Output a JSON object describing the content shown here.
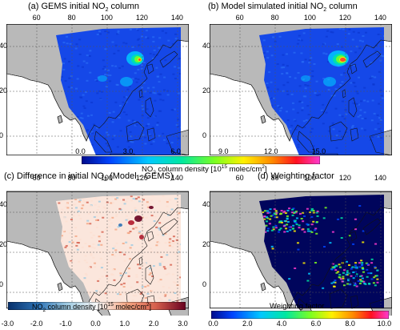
{
  "panels": {
    "a": {
      "title_main": "(a) GEMS initial NO",
      "title_sub": "2",
      "title_tail": " column"
    },
    "b": {
      "title_main": "(b) Model simulated initial NO",
      "title_sub": "2",
      "title_tail": " column"
    },
    "c": {
      "title_main": "(c) Difference in initial NO",
      "title_sub": "2",
      "title_tail": " (Model - GEMS)"
    },
    "d": {
      "title_main": "(d) Weighting factor",
      "title_sub": "",
      "title_tail": ""
    }
  },
  "axes": {
    "lon_ticks": [
      "60",
      "80",
      "100",
      "120",
      "140"
    ],
    "lat_ticks": [
      "40",
      "20",
      "0"
    ]
  },
  "colorbars": {
    "top": {
      "labels": [
        "0.0",
        "3.0",
        "6.0",
        "9.0",
        "12.0",
        "15.0"
      ],
      "title_a": "NO",
      "title_sub": "2",
      "title_b": " column density [10",
      "title_sup": "15",
      "title_c": " molec/cm",
      "title_sup2": "2",
      "title_d": "]"
    },
    "diff": {
      "labels": [
        "-3.0",
        "-2.0",
        "-1.0",
        "0.0",
        "1.0",
        "2.0",
        "3.0"
      ],
      "title_a": "NO",
      "title_sub": "2",
      "title_b": " column density [10",
      "title_sup": "15",
      "title_c": " molec/cm",
      "title_sup2": "2",
      "title_d": "]"
    },
    "weight": {
      "labels": [
        "0.0",
        "2.0",
        "4.0",
        "6.0",
        "8.0",
        "10.0"
      ],
      "title": "Weighting factor"
    }
  },
  "colors": {
    "land_gray": "#b9b9b9",
    "ocean": "#ffffff",
    "no2_low": "#1548e8",
    "weight_low": "#00055c"
  }
}
